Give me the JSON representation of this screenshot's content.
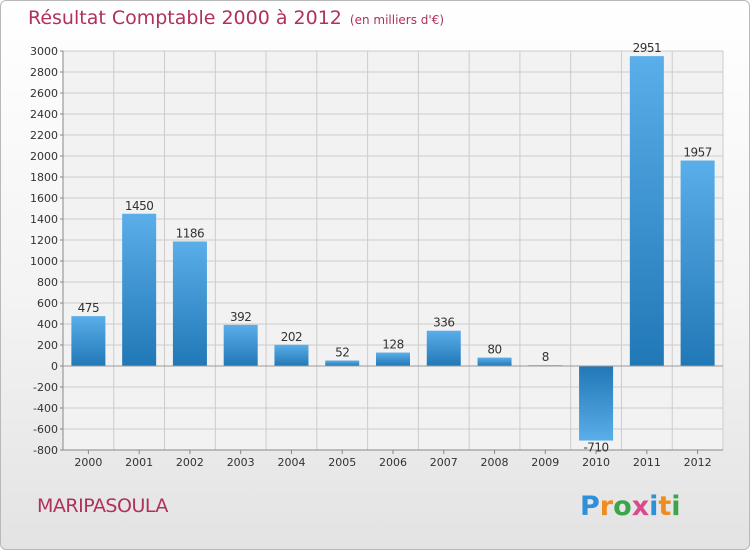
{
  "title": "Résultat Comptable 2000 à 2012",
  "unit_note": "(en milliers d'€)",
  "commune": "MARIPASOULA",
  "logo": {
    "letters": [
      "P",
      "r",
      "o",
      "x",
      "i",
      "t",
      "i"
    ],
    "colors": [
      "#2f8fd8",
      "#f08c1e",
      "#3aa64a",
      "#d84a8c",
      "#2f8fd8",
      "#f08c1e",
      "#3aa64a"
    ]
  },
  "colors": {
    "title": "#b0305e",
    "bar_light": "#5aaee9",
    "bar_dark": "#2178b6",
    "grid": "#cccccc"
  },
  "chart_data": {
    "type": "bar",
    "title": "Résultat Comptable 2000 à 2012",
    "ylabel": "en milliers d'€",
    "xlabel": "",
    "categories": [
      "2000",
      "2001",
      "2002",
      "2003",
      "2004",
      "2005",
      "2006",
      "2007",
      "2008",
      "2009",
      "2010",
      "2011",
      "2012"
    ],
    "values": [
      475,
      1450,
      1186,
      392,
      202,
      52,
      128,
      336,
      80,
      8,
      -710,
      2951,
      1957
    ],
    "value_labels": [
      "475",
      "1450",
      "1186",
      "392",
      "202",
      "52",
      "128",
      "336",
      "80",
      "8",
      "-710",
      "2951",
      "1957"
    ],
    "ylim": [
      -800,
      3000
    ],
    "yticks": [
      -800,
      -600,
      -400,
      -200,
      0,
      200,
      400,
      600,
      800,
      1000,
      1200,
      1400,
      1600,
      1800,
      2000,
      2200,
      2400,
      2600,
      2800,
      3000
    ],
    "ytick_labels": [
      "-800",
      "-600",
      "-400",
      "-200",
      "0",
      "200",
      "400",
      "600",
      "800",
      "1000",
      "1200",
      "1400",
      "1600",
      "1800",
      "2000",
      "2200",
      "2400",
      "2600",
      "2800",
      "3000"
    ],
    "grid": true,
    "legend": "none"
  }
}
